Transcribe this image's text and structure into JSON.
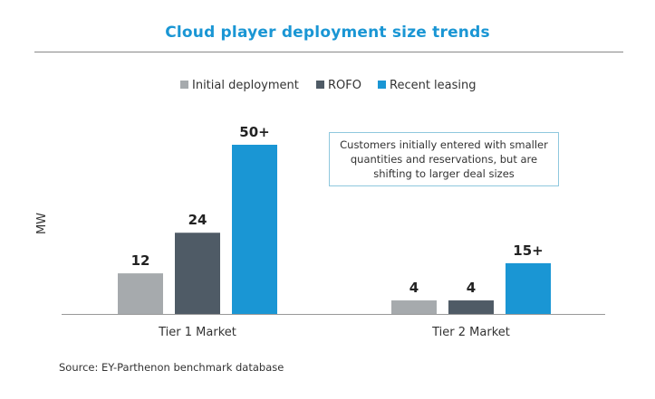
{
  "chart_data": {
    "type": "bar",
    "title": "Cloud player deployment size trends",
    "ylabel": "MW",
    "xlabel": "",
    "categories": [
      "Tier 1 Market",
      "Tier 2 Market"
    ],
    "series": [
      {
        "name": "Initial deployment",
        "color": "#a6aaad",
        "values": [
          12,
          4
        ],
        "labels": [
          "12",
          "4"
        ]
      },
      {
        "name": "ROFO",
        "color": "#4f5b66",
        "values": [
          24,
          4
        ],
        "labels": [
          "24",
          "4"
        ]
      },
      {
        "name": "Recent leasing",
        "color": "#1a96d4",
        "values": [
          50,
          15
        ],
        "labels": [
          "50+",
          "15+"
        ]
      }
    ],
    "ylim": [
      0,
      50
    ],
    "grid": false,
    "legend_position": "top-center",
    "annotation": "Customers initially entered with smaller quantities and reservations, but are shifting to larger deal sizes",
    "source": "Source: EY-Parthenon benchmark database"
  }
}
